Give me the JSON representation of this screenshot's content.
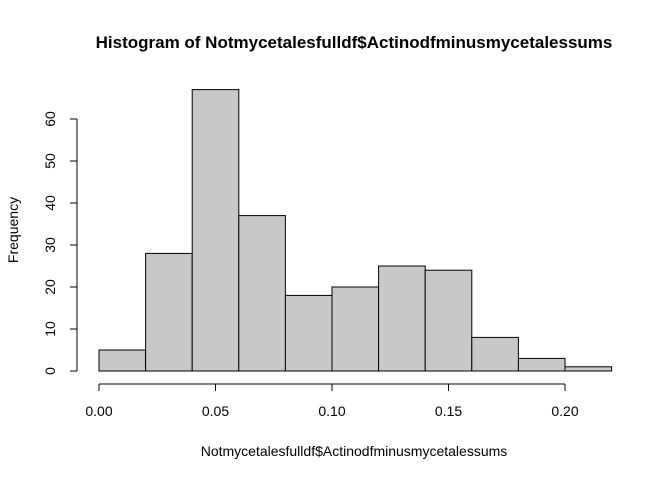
{
  "chart_data": {
    "type": "bar",
    "title": "Histogram of Notmycetalesfulldf$Actinodfminusmycetalessums",
    "xlabel": "Notmycetalesfulldf$Actinodfminusmycetalessums",
    "ylabel": "Frequency",
    "bins": [
      {
        "start": 0.0,
        "end": 0.02,
        "count": 5
      },
      {
        "start": 0.02,
        "end": 0.04,
        "count": 28
      },
      {
        "start": 0.04,
        "end": 0.06,
        "count": 67
      },
      {
        "start": 0.06,
        "end": 0.08,
        "count": 37
      },
      {
        "start": 0.08,
        "end": 0.1,
        "count": 18
      },
      {
        "start": 0.1,
        "end": 0.12,
        "count": 20
      },
      {
        "start": 0.12,
        "end": 0.14,
        "count": 25
      },
      {
        "start": 0.14,
        "end": 0.16,
        "count": 24
      },
      {
        "start": 0.16,
        "end": 0.18,
        "count": 8
      },
      {
        "start": 0.18,
        "end": 0.2,
        "count": 3
      },
      {
        "start": 0.2,
        "end": 0.22,
        "count": 1
      }
    ],
    "xticks": [
      {
        "value": 0.0,
        "label": "0.00"
      },
      {
        "value": 0.05,
        "label": "0.05"
      },
      {
        "value": 0.1,
        "label": "0.10"
      },
      {
        "value": 0.15,
        "label": "0.15"
      },
      {
        "value": 0.2,
        "label": "0.20"
      }
    ],
    "yticks": [
      {
        "value": 0,
        "label": "0"
      },
      {
        "value": 10,
        "label": "10"
      },
      {
        "value": 20,
        "label": "20"
      },
      {
        "value": 30,
        "label": "30"
      },
      {
        "value": 40,
        "label": "40"
      },
      {
        "value": 50,
        "label": "50"
      },
      {
        "value": 60,
        "label": "60"
      }
    ],
    "xlim": [
      0.0,
      0.22
    ],
    "ylim": [
      0,
      67
    ],
    "grid": false,
    "bar_color": "#c8c8c8",
    "edge_color": "#000000"
  }
}
